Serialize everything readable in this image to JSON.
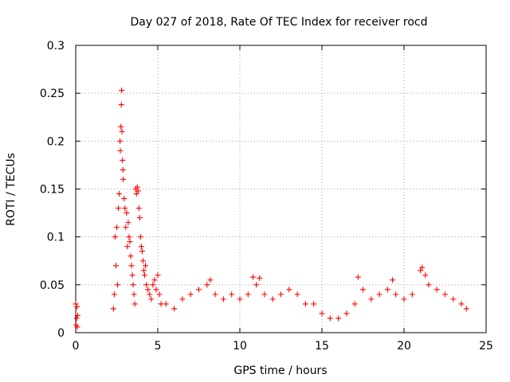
{
  "chart_data": {
    "type": "scatter",
    "title": "Day 027 of 2018, Rate Of TEC Index for receiver rocd",
    "xlabel": "GPS time / hours",
    "ylabel": "ROTI / TECUs",
    "xlim": [
      0,
      25
    ],
    "ylim": [
      0,
      0.3
    ],
    "xticks": [
      0,
      5,
      10,
      15,
      20,
      25
    ],
    "yticks": [
      0,
      0.05,
      0.1,
      0.15,
      0.2,
      0.25,
      0.3
    ],
    "xtick_labels": [
      "0",
      "5",
      "10",
      "15",
      "20",
      "25"
    ],
    "ytick_labels": [
      "0",
      "0.05",
      "0.1",
      "0.15",
      "0.2",
      "0.25",
      "0.3"
    ],
    "grid": true,
    "marker": "+",
    "color": "#ff0000",
    "series": [
      {
        "name": "ROTI",
        "points": [
          [
            0.0,
            0.03
          ],
          [
            0.02,
            0.008
          ],
          [
            0.05,
            0.015
          ],
          [
            0.08,
            0.027
          ],
          [
            0.1,
            0.006
          ],
          [
            0.12,
            0.018
          ],
          [
            2.3,
            0.025
          ],
          [
            2.35,
            0.04
          ],
          [
            2.4,
            0.1
          ],
          [
            2.45,
            0.07
          ],
          [
            2.5,
            0.11
          ],
          [
            2.55,
            0.05
          ],
          [
            2.6,
            0.13
          ],
          [
            2.65,
            0.145
          ],
          [
            2.7,
            0.2
          ],
          [
            2.72,
            0.19
          ],
          [
            2.75,
            0.215
          ],
          [
            2.78,
            0.238
          ],
          [
            2.8,
            0.253
          ],
          [
            2.82,
            0.21
          ],
          [
            2.85,
            0.18
          ],
          [
            2.88,
            0.17
          ],
          [
            2.9,
            0.16
          ],
          [
            2.95,
            0.14
          ],
          [
            3.0,
            0.13
          ],
          [
            3.05,
            0.11
          ],
          [
            3.1,
            0.125
          ],
          [
            3.15,
            0.09
          ],
          [
            3.2,
            0.115
          ],
          [
            3.25,
            0.1
          ],
          [
            3.3,
            0.095
          ],
          [
            3.35,
            0.08
          ],
          [
            3.4,
            0.07
          ],
          [
            3.45,
            0.06
          ],
          [
            3.5,
            0.05
          ],
          [
            3.55,
            0.04
          ],
          [
            3.6,
            0.03
          ],
          [
            3.65,
            0.15
          ],
          [
            3.7,
            0.145
          ],
          [
            3.75,
            0.152
          ],
          [
            3.8,
            0.148
          ],
          [
            3.85,
            0.13
          ],
          [
            3.9,
            0.12
          ],
          [
            3.95,
            0.1
          ],
          [
            4.0,
            0.09
          ],
          [
            4.05,
            0.085
          ],
          [
            4.1,
            0.075
          ],
          [
            4.15,
            0.065
          ],
          [
            4.2,
            0.06
          ],
          [
            4.25,
            0.07
          ],
          [
            4.3,
            0.05
          ],
          [
            4.4,
            0.045
          ],
          [
            4.5,
            0.04
          ],
          [
            4.6,
            0.035
          ],
          [
            4.7,
            0.05
          ],
          [
            4.8,
            0.055
          ],
          [
            4.9,
            0.045
          ],
          [
            5.0,
            0.06
          ],
          [
            5.1,
            0.04
          ],
          [
            5.2,
            0.03
          ],
          [
            5.5,
            0.03
          ],
          [
            6.0,
            0.025
          ],
          [
            6.5,
            0.035
          ],
          [
            7.0,
            0.04
          ],
          [
            7.5,
            0.045
          ],
          [
            8.0,
            0.05
          ],
          [
            8.2,
            0.055
          ],
          [
            8.5,
            0.04
          ],
          [
            9.0,
            0.035
          ],
          [
            9.5,
            0.04
          ],
          [
            10.0,
            0.035
          ],
          [
            10.5,
            0.04
          ],
          [
            10.8,
            0.058
          ],
          [
            11.0,
            0.05
          ],
          [
            11.2,
            0.057
          ],
          [
            11.5,
            0.04
          ],
          [
            12.0,
            0.035
          ],
          [
            12.5,
            0.04
          ],
          [
            13.0,
            0.045
          ],
          [
            13.5,
            0.04
          ],
          [
            14.0,
            0.03
          ],
          [
            14.5,
            0.03
          ],
          [
            15.0,
            0.02
          ],
          [
            15.5,
            0.015
          ],
          [
            16.0,
            0.015
          ],
          [
            16.5,
            0.02
          ],
          [
            17.0,
            0.03
          ],
          [
            17.2,
            0.058
          ],
          [
            17.5,
            0.045
          ],
          [
            18.0,
            0.035
          ],
          [
            18.5,
            0.04
          ],
          [
            19.0,
            0.045
          ],
          [
            19.3,
            0.055
          ],
          [
            19.5,
            0.04
          ],
          [
            20.0,
            0.035
          ],
          [
            20.5,
            0.04
          ],
          [
            21.0,
            0.065
          ],
          [
            21.1,
            0.068
          ],
          [
            21.3,
            0.06
          ],
          [
            21.5,
            0.05
          ],
          [
            22.0,
            0.045
          ],
          [
            22.5,
            0.04
          ],
          [
            23.0,
            0.035
          ],
          [
            23.5,
            0.03
          ],
          [
            23.8,
            0.025
          ]
        ]
      }
    ]
  }
}
